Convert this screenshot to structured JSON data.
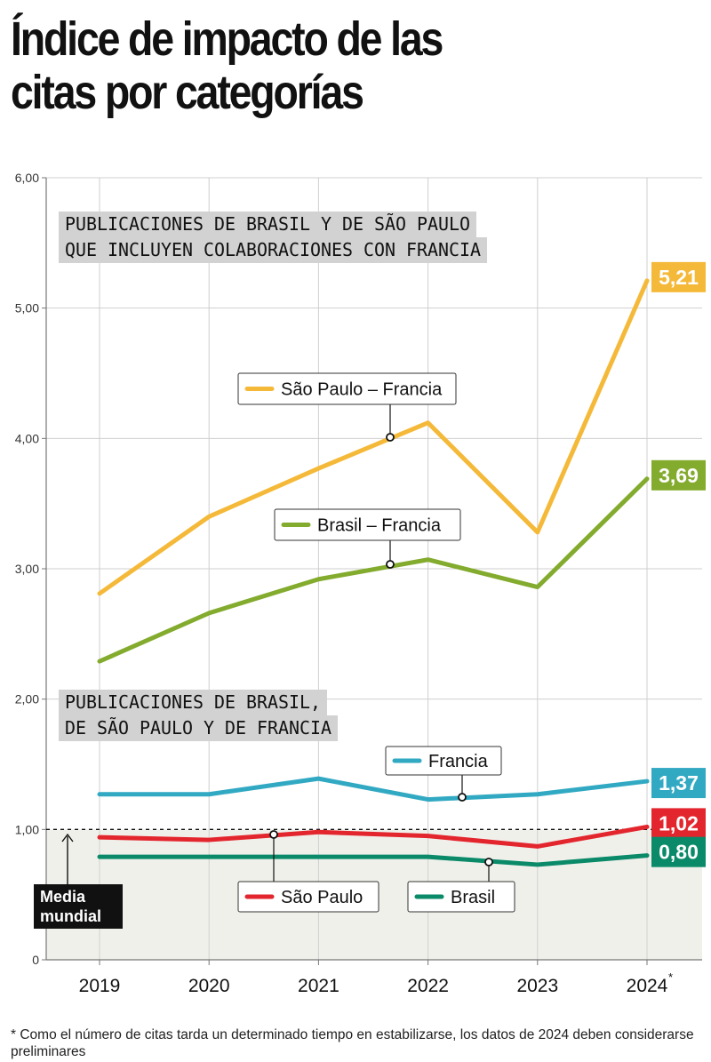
{
  "title": [
    "Índice de impacto de las",
    "citas por categorías"
  ],
  "footnote": "* Como el número de citas tarda un determinado tiempo en estabilizarse, los datos de 2024 deben considerarse preliminares",
  "chart_data": {
    "type": "line",
    "title": "Índice de impacto de las citas por categorías",
    "x": [
      "2019",
      "2020",
      "2021",
      "2022",
      "2023",
      "2024"
    ],
    "x_tick_labels": [
      "2019",
      "2020",
      "2021",
      "2022",
      "2023",
      "2024"
    ],
    "x_tick_note": "*",
    "y_ticks": [
      "0",
      "1,00",
      "2,00",
      "3,00",
      "4,00",
      "5,00",
      "6,00"
    ],
    "ylim": [
      0,
      6
    ],
    "grid": true,
    "group_labels": [
      [
        "PUBLICACIONES DE BRASIL Y DE SÃO PAULO",
        "QUE INCLUYEN COLABORACIONES CON FRANCIA"
      ],
      [
        "PUBLICACIONES DE BRASIL,",
        "DE SÃO PAULO Y DE FRANCIA"
      ]
    ],
    "reference_line": {
      "value": 1.0,
      "label": [
        "Media",
        "mundial"
      ]
    },
    "series": [
      {
        "name": "São Paulo – Francia",
        "color": "#f5b93a",
        "values": [
          2.81,
          3.4,
          3.77,
          4.12,
          3.28,
          5.21
        ],
        "end_label": "5,21"
      },
      {
        "name": "Brasil – Francia",
        "color": "#83ab2e",
        "values": [
          2.29,
          2.66,
          2.92,
          3.07,
          2.86,
          3.69
        ],
        "end_label": "3,69"
      },
      {
        "name": "Francia",
        "color": "#32a9c3",
        "values": [
          1.27,
          1.27,
          1.39,
          1.23,
          1.27,
          1.37
        ],
        "end_label": "1,37"
      },
      {
        "name": "São Paulo",
        "color": "#e3262d",
        "values": [
          0.94,
          0.92,
          0.98,
          0.95,
          0.87,
          1.02
        ],
        "end_label": "1,02"
      },
      {
        "name": "Brasil",
        "color": "#0a8a68",
        "values": [
          0.79,
          0.79,
          0.79,
          0.79,
          0.73,
          0.8
        ],
        "end_label": "0,80"
      }
    ]
  }
}
